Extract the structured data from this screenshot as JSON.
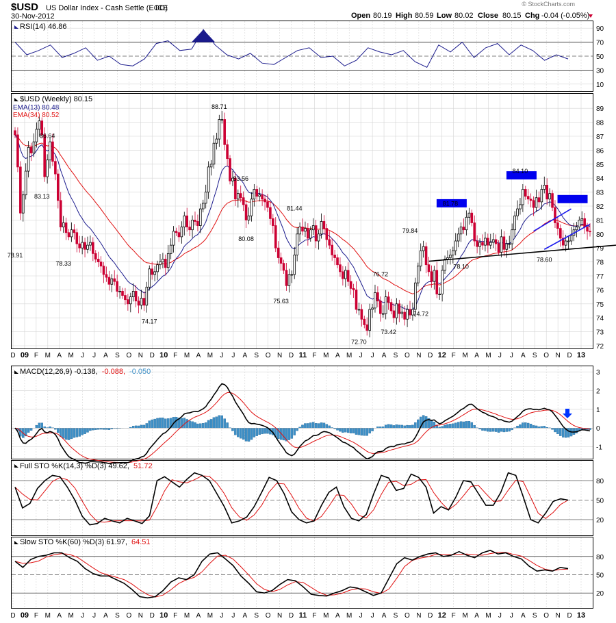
{
  "header": {
    "symbol": "$USD",
    "name": "US Dollar Index - Cash Settle (EOD)",
    "exchange": "ICE",
    "date": "30-Nov-2012",
    "open_label": "Open",
    "open": "80.19",
    "high_label": "High",
    "high": "80.59",
    "low_label": "Low",
    "low": "80.02",
    "close_label": "Close",
    "close": "80.15",
    "chg_label": "Chg",
    "chg": "-0.04 (-0.05%)",
    "watermark": "© StockCharts.com"
  },
  "colors": {
    "up_candle": "#000000",
    "down_candle": "#cc0033",
    "ema13": "#1a1a8c",
    "ema34": "#e01010",
    "rsi": "#1a1a8c",
    "macd_line": "#000000",
    "macd_signal": "#e01010",
    "histogram": "#3d8fc6",
    "box": "#0000ee",
    "trend": "#1a1aee",
    "grid": "#d4d4d4"
  },
  "x_axis": {
    "labels": [
      "D",
      "09",
      "F",
      "M",
      "A",
      "M",
      "J",
      "J",
      "A",
      "S",
      "O",
      "N",
      "D",
      "10",
      "F",
      "M",
      "A",
      "M",
      "J",
      "J",
      "A",
      "S",
      "O",
      "N",
      "D",
      "11",
      "F",
      "M",
      "A",
      "M",
      "J",
      "J",
      "A",
      "S",
      "O",
      "N",
      "D",
      "12",
      "F",
      "M",
      "A",
      "M",
      "J",
      "J",
      "A",
      "S",
      "O",
      "N",
      "D",
      "13"
    ],
    "bold": [
      "09",
      "10",
      "11",
      "12",
      "13"
    ]
  },
  "rsi": {
    "title": "RSI(14) 46.86",
    "ticks": [
      "90",
      "70",
      "50",
      "30",
      "10"
    ],
    "values": [
      70,
      52,
      58,
      66,
      48,
      54,
      62,
      44,
      50,
      38,
      36,
      46,
      68,
      72,
      58,
      60,
      88,
      66,
      52,
      46,
      54,
      40,
      38,
      48,
      58,
      62,
      48,
      50,
      36,
      44,
      62,
      56,
      52,
      58,
      42,
      34,
      66,
      56,
      70,
      48,
      62,
      68,
      52,
      66,
      58,
      44,
      52,
      46
    ]
  },
  "price": {
    "title": "$USD (Weekly) 80.15",
    "ema13_label": "EMA(13) 80.48",
    "ema34_label": "EMA(34) 80.52",
    "ticks": [
      "89",
      "88",
      "87",
      "86",
      "85",
      "84",
      "83",
      "82",
      "81",
      "80",
      "79",
      "78",
      "77",
      "76",
      "75",
      "74",
      "73",
      "72"
    ],
    "ylim": [
      72,
      89.5
    ],
    "annotations": [
      {
        "text": "78.91",
        "value": 78.91,
        "wk": 0
      },
      {
        "text": "86.64",
        "value": 86.64,
        "wk": 12
      },
      {
        "text": "83.13",
        "value": 83.13,
        "wk": 10
      },
      {
        "text": "78.33",
        "value": 78.33,
        "wk": 18
      },
      {
        "text": "74.17",
        "value": 74.17,
        "wk": 50
      },
      {
        "text": "88.71",
        "value": 88.71,
        "wk": 76
      },
      {
        "text": "83.56",
        "value": 83.56,
        "wk": 84
      },
      {
        "text": "80.08",
        "value": 80.08,
        "wk": 86
      },
      {
        "text": "75.63",
        "value": 75.63,
        "wk": 99
      },
      {
        "text": "81.44",
        "value": 81.44,
        "wk": 104
      },
      {
        "text": "72.70",
        "value": 72.7,
        "wk": 128
      },
      {
        "text": "76.72",
        "value": 76.72,
        "wk": 136
      },
      {
        "text": "73.42",
        "value": 73.42,
        "wk": 139
      },
      {
        "text": "79.84",
        "value": 79.84,
        "wk": 147
      },
      {
        "text": "74.72",
        "value": 74.72,
        "wk": 151
      },
      {
        "text": "81.78",
        "value": 81.78,
        "wk": 162
      },
      {
        "text": "78.10",
        "value": 78.1,
        "wk": 166
      },
      {
        "text": "84.10",
        "value": 84.1,
        "wk": 188
      },
      {
        "text": "78.60",
        "value": 78.6,
        "wk": 197
      }
    ],
    "closes": [
      87.1,
      84.8,
      81.5,
      82.8,
      84.5,
      86.2,
      85.8,
      86.6,
      87.5,
      88.1,
      87.1,
      84.1,
      85.3,
      86.6,
      85.2,
      84.3,
      82.4,
      80.5,
      80.8,
      80.1,
      79.8,
      80.3,
      80.1,
      79.3,
      79.0,
      79.4,
      78.9,
      79.2,
      79.4,
      78.6,
      78.2,
      78.0,
      77.7,
      77.1,
      76.9,
      76.4,
      76.8,
      76.6,
      75.9,
      75.9,
      75.6,
      75.3,
      75.0,
      75.5,
      75.9,
      75.2,
      74.9,
      75.4,
      74.9,
      76.2,
      77.5,
      77.1,
      77.3,
      77.8,
      78.0,
      78.2,
      77.6,
      78.6,
      79.2,
      80.2,
      80.1,
      79.8,
      80.5,
      81.3,
      80.5,
      80.3,
      81.0,
      80.9,
      80.6,
      81.8,
      82.2,
      83.0,
      84.8,
      85.0,
      86.5,
      86.8,
      88.2,
      88.2,
      86.4,
      85.4,
      83.8,
      84.0,
      82.5,
      82.9,
      82.6,
      82.1,
      81.0,
      81.3,
      82.5,
      83.2,
      82.7,
      82.8,
      82.5,
      82.3,
      81.9,
      81.1,
      80.6,
      79.0,
      78.3,
      77.9,
      77.4,
      76.3,
      77.1,
      77.1,
      78.5,
      80.0,
      80.5,
      80.2,
      80.4,
      79.7,
      80.3,
      80.6,
      79.5,
      80.0,
      80.9,
      80.4,
      79.6,
      79.2,
      78.5,
      78.3,
      77.8,
      77.3,
      76.8,
      77.4,
      76.6,
      76.1,
      76.0,
      74.6,
      74.6,
      73.9,
      73.5,
      73.1,
      74.6,
      74.7,
      75.8,
      75.2,
      74.3,
      74.3,
      75.5,
      75.1,
      74.5,
      74.0,
      75.0,
      74.3,
      74.4,
      73.9,
      74.6,
      74.2,
      74.6,
      76.5,
      77.7,
      78.8,
      79.1,
      77.8,
      77.3,
      76.6,
      77.4,
      75.7,
      75.7,
      77.4,
      78.2,
      78.3,
      78.5,
      78.8,
      79.5,
      80.0,
      80.5,
      80.3,
      81.2,
      81.5,
      80.8,
      79.5,
      79.1,
      79.4,
      79.2,
      79.7,
      79.2,
      79.4,
      79.6,
      79.3,
      78.7,
      79.8,
      78.9,
      79.3,
      79.3,
      80.3,
      81.3,
      81.8,
      82.1,
      83.2,
      82.7,
      82.5,
      82.4,
      81.9,
      82.6,
      82.3,
      83.2,
      83.5,
      82.5,
      82.9,
      81.9,
      80.8,
      80.4,
      79.7,
      79.2,
      79.5,
      79.5,
      79.9,
      80.3,
      80.5,
      81.0,
      81.1,
      80.5,
      80.2,
      80.15
    ]
  },
  "macd": {
    "title_main": "MACD(12,26,9) -0.138,",
    "title_signal": "-0.088,",
    "title_hist": "-0.050",
    "ticks": [
      "3",
      "2",
      "1",
      "0",
      "-1"
    ],
    "ylim": [
      -1.6,
      3.3
    ]
  },
  "full_sto": {
    "title_main": "Full STO %K(14,3) %D(3) 49.62,",
    "title_d": "51.72",
    "ticks": [
      "80",
      "50",
      "20"
    ],
    "values": [
      70,
      38,
      45,
      68,
      80,
      88,
      86,
      70,
      50,
      25,
      12,
      14,
      22,
      18,
      15,
      22,
      18,
      14,
      26,
      80,
      86,
      78,
      70,
      82,
      92,
      88,
      80,
      60,
      40,
      15,
      18,
      24,
      40,
      62,
      85,
      80,
      60,
      32,
      20,
      15,
      18,
      42,
      62,
      70,
      40,
      22,
      18,
      28,
      60,
      88,
      84,
      65,
      68,
      90,
      85,
      70,
      30,
      40,
      35,
      55,
      80,
      78,
      60,
      42,
      42,
      62,
      92,
      88,
      55,
      20,
      15,
      30,
      48,
      52,
      50
    ]
  },
  "slow_sto": {
    "title_main": "Slow STO %K(60) %D(3) 61.97,",
    "title_d": "64.51",
    "ticks": [
      "80",
      "50",
      "20"
    ],
    "values": [
      72,
      62,
      75,
      80,
      82,
      86,
      86,
      78,
      72,
      60,
      52,
      48,
      48,
      42,
      36,
      26,
      14,
      12,
      14,
      24,
      38,
      45,
      42,
      50,
      72,
      84,
      86,
      76,
      65,
      48,
      36,
      22,
      20,
      24,
      34,
      42,
      40,
      30,
      18,
      16,
      15,
      20,
      24,
      30,
      28,
      22,
      16,
      20,
      44,
      68,
      78,
      74,
      80,
      84,
      86,
      80,
      82,
      88,
      82,
      78,
      86,
      90,
      84,
      86,
      80,
      76,
      64,
      56,
      58,
      56,
      62,
      60
    ]
  }
}
